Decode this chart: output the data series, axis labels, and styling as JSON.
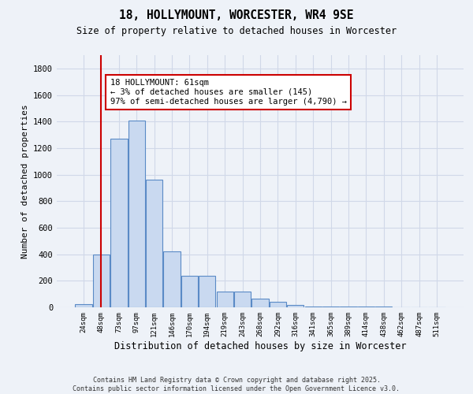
{
  "title1": "18, HOLLYMOUNT, WORCESTER, WR4 9SE",
  "title2": "Size of property relative to detached houses in Worcester",
  "xlabel": "Distribution of detached houses by size in Worcester",
  "ylabel": "Number of detached properties",
  "bar_labels": [
    "24sqm",
    "48sqm",
    "73sqm",
    "97sqm",
    "121sqm",
    "146sqm",
    "170sqm",
    "194sqm",
    "219sqm",
    "243sqm",
    "268sqm",
    "292sqm",
    "316sqm",
    "341sqm",
    "365sqm",
    "389sqm",
    "414sqm",
    "438sqm",
    "462sqm",
    "487sqm",
    "511sqm"
  ],
  "bar_values": [
    25,
    400,
    1270,
    1410,
    960,
    420,
    235,
    235,
    120,
    120,
    65,
    42,
    15,
    5,
    5,
    5,
    3,
    3,
    2,
    2,
    2
  ],
  "bar_color": "#c9d9f0",
  "bar_edge_color": "#5a8ac6",
  "vline_x": 1.0,
  "vline_color": "#cc0000",
  "annotation_text": "18 HOLLYMOUNT: 61sqm\n← 3% of detached houses are smaller (145)\n97% of semi-detached houses are larger (4,790) →",
  "annotation_box_color": "#ffffff",
  "annotation_box_edge": "#cc0000",
  "ylim": [
    0,
    1900
  ],
  "yticks": [
    0,
    200,
    400,
    600,
    800,
    1000,
    1200,
    1400,
    1600,
    1800
  ],
  "grid_color": "#d0d8e8",
  "bg_color": "#eef2f8",
  "footer1": "Contains HM Land Registry data © Crown copyright and database right 2025.",
  "footer2": "Contains public sector information licensed under the Open Government Licence v3.0."
}
